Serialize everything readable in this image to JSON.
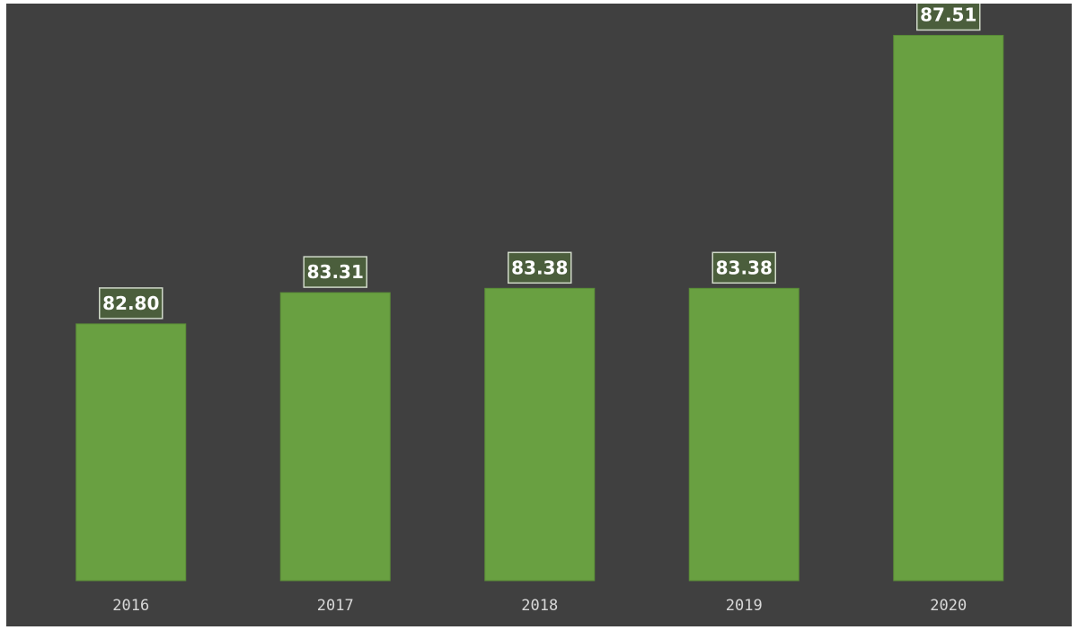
{
  "chart_data": {
    "type": "bar",
    "title": "",
    "xlabel": "",
    "ylabel": "",
    "categories": [
      "2016",
      "2017",
      "2018",
      "2019",
      "2020"
    ],
    "values": [
      82.8,
      83.31,
      83.38,
      83.38,
      87.51
    ],
    "data_labels": [
      "82.80",
      "83.31",
      "83.38",
      "83.38",
      "87.51"
    ],
    "ylim": [
      80,
      88
    ],
    "grid": false,
    "legend": "none",
    "colors": {
      "background": "#404040",
      "bar": "#69a041",
      "bar_edge": "#5a8c37",
      "label_box": "#4b5e3c",
      "label_border": "#cfd8c8",
      "label_text": "#ffffff",
      "tick_text": "#d8d8d8"
    }
  }
}
